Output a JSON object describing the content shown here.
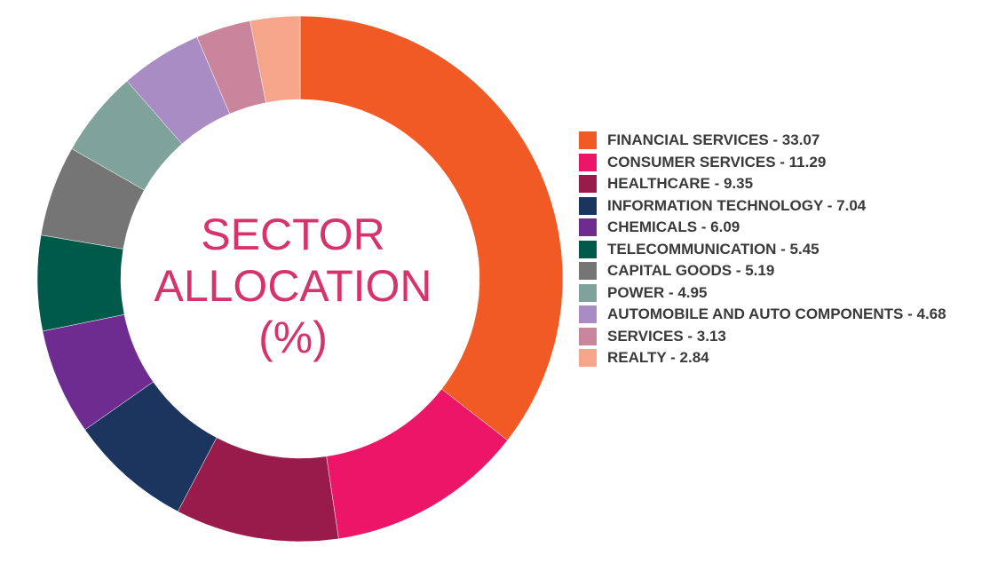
{
  "chart_data": {
    "type": "pie",
    "subtype": "donut",
    "center_title_lines": [
      "SECTOR",
      "ALLOCATION",
      "(%)"
    ],
    "legend_placement": "right",
    "slices": [
      {
        "label": "FINANCIAL SERVICES - 33.07",
        "name": "FINANCIAL SERVICES",
        "value": 33.07,
        "color": "#f15a24"
      },
      {
        "label": "CONSUMER SERVICES - 11.29",
        "name": "CONSUMER SERVICES",
        "value": 11.29,
        "color": "#ed1568"
      },
      {
        "label": "HEALTHCARE - 9.35",
        "name": "HEALTHCARE",
        "value": 9.35,
        "color": "#981b4c"
      },
      {
        "label": "INFORMATION TECHNOLOGY - 7.04",
        "name": "INFORMATION TECHNOLOGY",
        "value": 7.04,
        "color": "#1c355e"
      },
      {
        "label": "CHEMICALS - 6.09",
        "name": "CHEMICALS",
        "value": 6.09,
        "color": "#6e2c91"
      },
      {
        "label": "TELECOMMUNICATION - 5.45",
        "name": "TELECOMMUNICATION",
        "value": 5.45,
        "color": "#005a4a"
      },
      {
        "label": "CAPITAL GOODS - 5.19",
        "name": "CAPITAL GOODS",
        "value": 5.19,
        "color": "#757575"
      },
      {
        "label": "POWER - 4.95",
        "name": "POWER",
        "value": 4.95,
        "color": "#7fa39a"
      },
      {
        "label": "AUTOMOBILE AND AUTO COMPONENTS - 4.68",
        "name": "AUTOMOBILE AND AUTO COMPONENTS",
        "value": 4.68,
        "color": "#a98cc4"
      },
      {
        "label": "SERVICES - 3.13",
        "name": "SERVICES",
        "value": 3.13,
        "color": "#c8859c"
      },
      {
        "label": "REALTY - 2.84",
        "name": "REALTY",
        "value": 2.84,
        "color": "#f5a58a"
      }
    ]
  }
}
